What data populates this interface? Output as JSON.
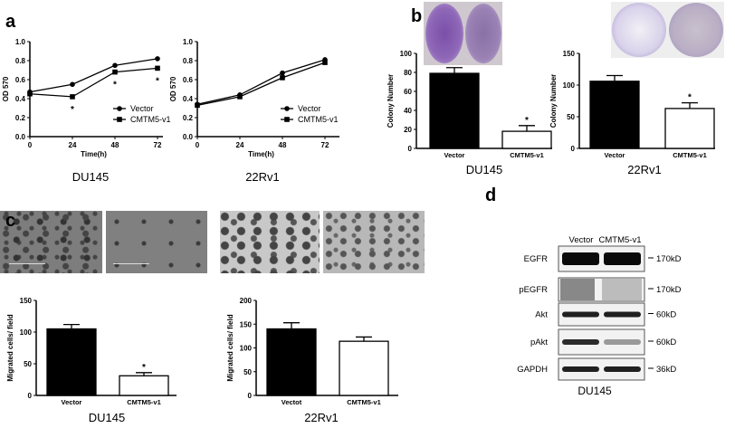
{
  "panel_labels": {
    "a": "a",
    "b": "b",
    "c": "c",
    "d": "d"
  },
  "cell_lines": {
    "a_left": "DU145",
    "a_right": "22Rv1",
    "b_left": "DU145",
    "b_right": "22Rv1",
    "c_left": "DU145",
    "c_right": "22Rv1",
    "d": "DU145"
  },
  "colors": {
    "bar_vector": "#000000",
    "bar_cmtm5": "#ffffff",
    "crystal_violet": "#8a6cb0"
  },
  "chart_data": [
    {
      "id": "a1",
      "type": "line",
      "xlabel": "Time(h)",
      "ylabel": "OD 570",
      "x": [
        0,
        24,
        48,
        72
      ],
      "xticks": [
        "0",
        "24",
        "48",
        "72"
      ],
      "ylim": [
        0,
        1.0
      ],
      "yticks": [
        "0.0",
        "0.2",
        "0.4",
        "0.6",
        "0.8",
        "1.0"
      ],
      "legend": "bottom-right",
      "series": [
        {
          "name": "Vector",
          "marker": "circle",
          "values": [
            0.47,
            0.55,
            0.75,
            0.82
          ]
        },
        {
          "name": "CMTM5-v1",
          "marker": "square",
          "values": [
            0.45,
            0.42,
            0.68,
            0.72
          ]
        }
      ],
      "annotations": [
        {
          "x": 24,
          "text": "*"
        },
        {
          "x": 48,
          "text": "*"
        },
        {
          "x": 72,
          "text": "*"
        }
      ]
    },
    {
      "id": "a2",
      "type": "line",
      "xlabel": "Time(h)",
      "ylabel": "OD 570",
      "x": [
        0,
        24,
        48,
        72
      ],
      "xticks": [
        "0",
        "24",
        "48",
        "72"
      ],
      "ylim": [
        0,
        1.0
      ],
      "yticks": [
        "0.0",
        "0.2",
        "0.4",
        "0.6",
        "0.8",
        "1.0"
      ],
      "legend": "bottom-right",
      "series": [
        {
          "name": "Vector",
          "marker": "circle",
          "values": [
            0.34,
            0.44,
            0.67,
            0.81
          ]
        },
        {
          "name": "CMTM5-v1",
          "marker": "square",
          "values": [
            0.33,
            0.42,
            0.62,
            0.78
          ]
        }
      ],
      "annotations": []
    },
    {
      "id": "b1",
      "type": "bar",
      "ylabel": "Colony Number",
      "categories": [
        "Vector",
        "CMTM5-v1"
      ],
      "values": [
        79,
        18
      ],
      "errors": [
        6,
        6
      ],
      "ylim": [
        0,
        100
      ],
      "yticks": [
        "0",
        "20",
        "40",
        "60",
        "80",
        "100"
      ],
      "annotations": [
        "",
        "*"
      ]
    },
    {
      "id": "b2",
      "type": "bar",
      "ylabel": "Colony Number",
      "categories": [
        "Vector",
        "CMTM5-v1"
      ],
      "values": [
        106,
        63
      ],
      "errors": [
        9,
        9
      ],
      "ylim": [
        0,
        150
      ],
      "yticks": [
        "0",
        "50",
        "100",
        "150"
      ],
      "annotations": [
        "",
        "*"
      ]
    },
    {
      "id": "c1",
      "type": "bar",
      "ylabel": "Migrated cells/ field",
      "categories": [
        "Vector",
        "CMTM5-v1"
      ],
      "values": [
        105,
        31
      ],
      "errors": [
        7,
        5
      ],
      "ylim": [
        0,
        150
      ],
      "yticks": [
        "0",
        "50",
        "100",
        "150"
      ],
      "annotations": [
        "",
        "*"
      ]
    },
    {
      "id": "c2",
      "type": "bar",
      "ylabel": "Migrated cells/ field",
      "categories": [
        "Vectot",
        "CMTM5-v1"
      ],
      "values": [
        140,
        114
      ],
      "errors": [
        13,
        9
      ],
      "ylim": [
        0,
        200
      ],
      "yticks": [
        "0",
        "50",
        "100",
        "150",
        "200"
      ],
      "annotations": [
        "",
        ""
      ]
    }
  ],
  "blot": {
    "lanes": [
      "Vector",
      "CMTM5-v1"
    ],
    "rows": [
      {
        "protein": "EGFR",
        "size": "170kD",
        "intensity": [
          1.0,
          1.0
        ]
      },
      {
        "protein": "pEGFR",
        "size": "170kD",
        "intensity": [
          0.8,
          0.35
        ]
      },
      {
        "protein": "Akt",
        "size": "60kD",
        "intensity": [
          0.9,
          0.9
        ]
      },
      {
        "protein": "pAkt",
        "size": "60kD",
        "intensity": [
          0.85,
          0.35
        ]
      },
      {
        "protein": "GAPDH",
        "size": "36kD",
        "intensity": [
          0.9,
          0.9
        ]
      }
    ]
  }
}
